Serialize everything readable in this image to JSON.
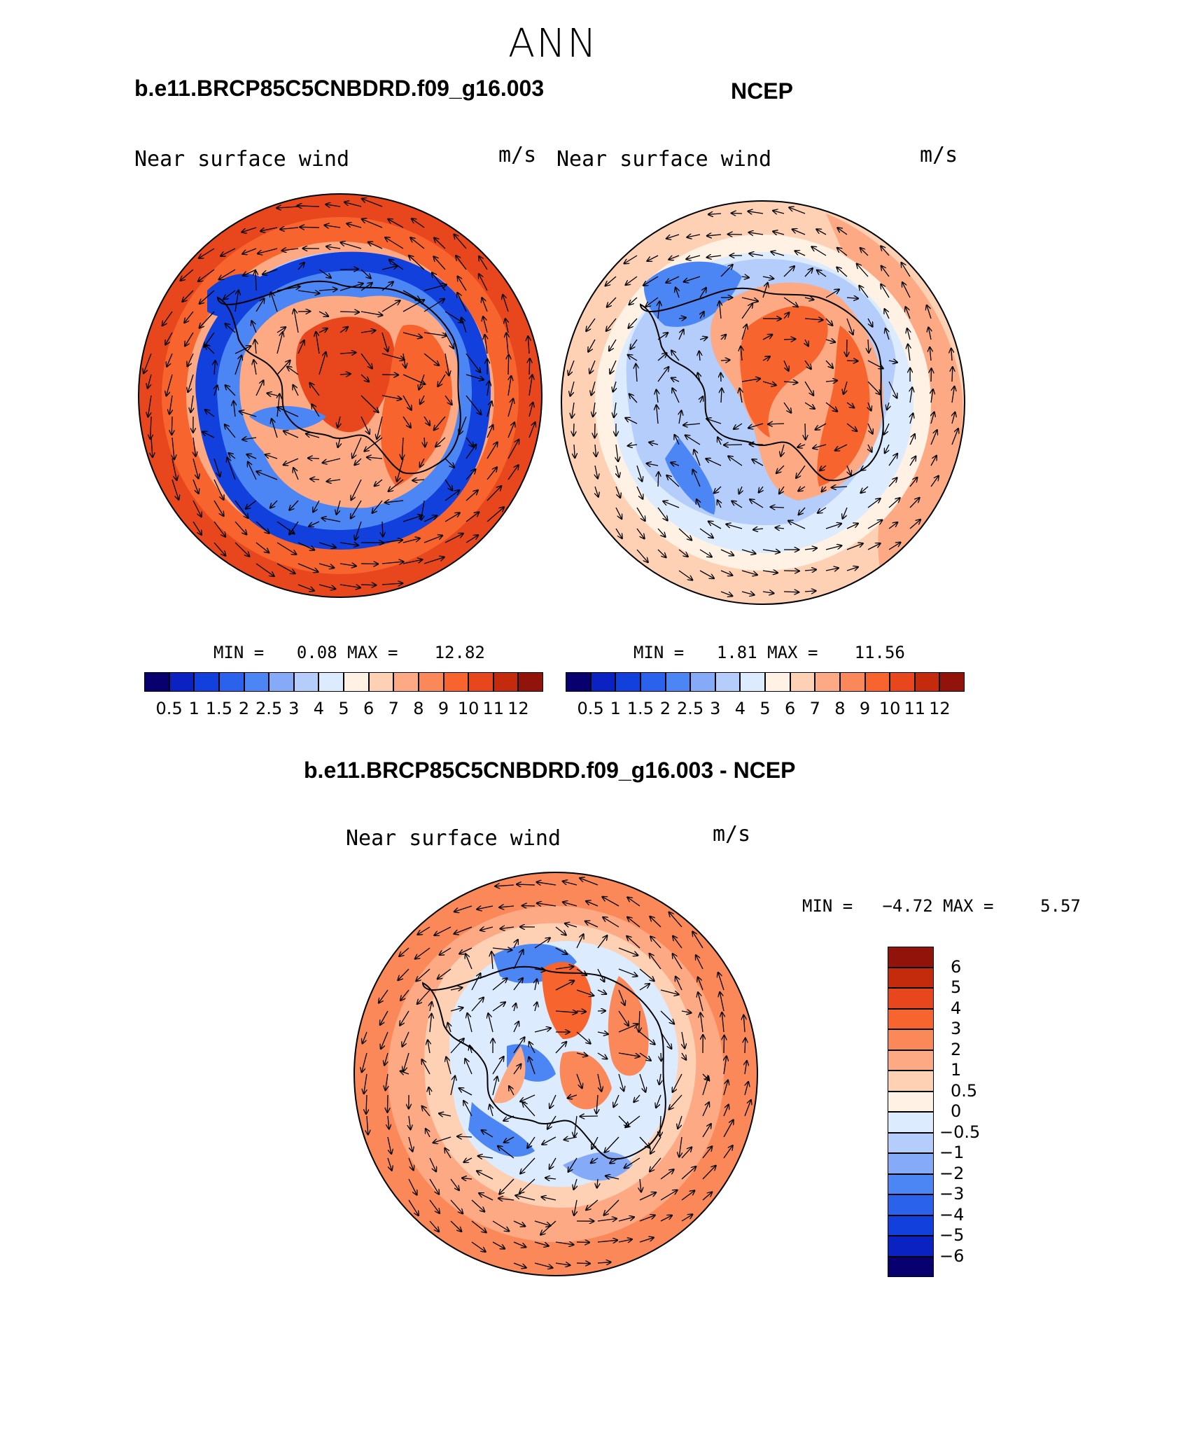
{
  "title": "ANN",
  "panels": {
    "model": {
      "case_title": "b.e11.BRCP85C5CNBDRD.f09_g16.003",
      "variable": "Near surface wind",
      "units": "m/s",
      "min_label": "MIN =",
      "min_value": "0.08",
      "max_label": "MAX =",
      "max_value": "12.82"
    },
    "obs": {
      "case_title": "NCEP",
      "variable": "Near surface wind",
      "units": "m/s",
      "min_label": "MIN =",
      "min_value": "1.81",
      "max_label": "MAX =",
      "max_value": "11.56"
    },
    "diff": {
      "case_title": "b.e11.BRCP85C5CNBDRD.f09_g16.003 - NCEP",
      "variable": "Near surface wind",
      "units": "m/s",
      "min_label": "MIN =",
      "min_value": "−4.72",
      "max_label": "MAX =",
      "max_value": "5.57"
    }
  },
  "colorbar_abs": {
    "colors": [
      "#08006e",
      "#0a22c2",
      "#1240dc",
      "#2a62ec",
      "#4c86f4",
      "#84aaf8",
      "#b4cdfa",
      "#dcebfe",
      "#fff2e4",
      "#fed0b4",
      "#fdaa84",
      "#fb8858",
      "#f7642e",
      "#e8461c",
      "#c42a0c",
      "#92130a"
    ],
    "labels": [
      "0.5",
      "1",
      "1.5",
      "2",
      "2.5",
      "3",
      "4",
      "5",
      "6",
      "7",
      "8",
      "9",
      "10",
      "11",
      "12"
    ]
  },
  "colorbar_diff": {
    "colors": [
      "#92130a",
      "#c42a0c",
      "#e8461c",
      "#f7642e",
      "#fb8858",
      "#fdaa84",
      "#fed0b4",
      "#fff2e4",
      "#dcebfe",
      "#b4cdfa",
      "#84aaf8",
      "#4c86f4",
      "#2a62ec",
      "#1240dc",
      "#0a22c2",
      "#08006e"
    ],
    "labels": [
      "6",
      "5",
      "4",
      "3",
      "2",
      "1",
      "0.5",
      "0",
      "−0.5",
      "−1",
      "−2",
      "−3",
      "−4",
      "−5",
      "−6"
    ]
  }
}
